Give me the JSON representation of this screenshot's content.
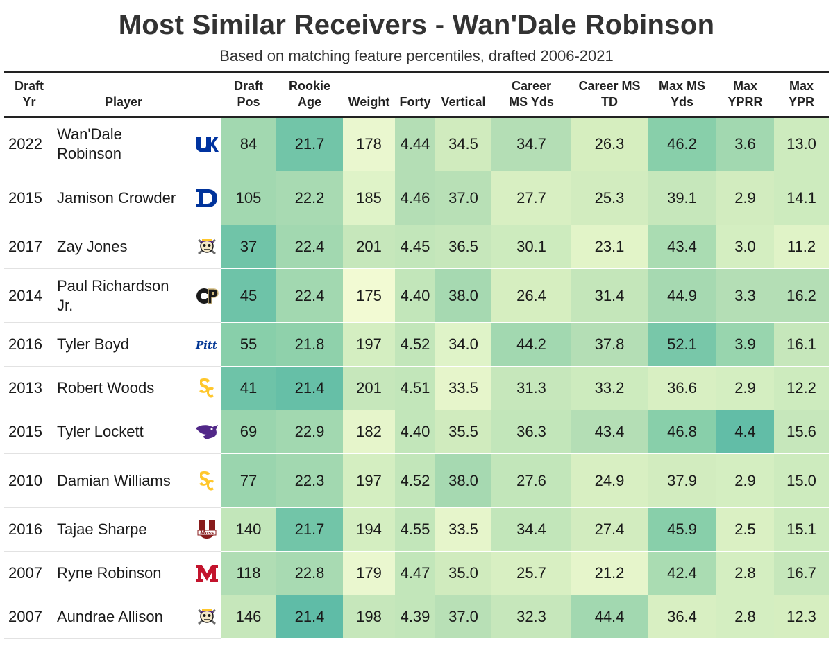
{
  "chart_data": {
    "type": "table",
    "title": "Most Similar Receivers - Wan'Dale Robinson",
    "subtitle": "Based on matching feature percentiles, drafted 2006-2021",
    "columns": [
      "Draft Yr",
      "Player",
      "",
      "Draft Pos",
      "Rookie Age",
      "Weight",
      "Forty",
      "Vertical",
      "Career MS Yds",
      "Career MS TD",
      "Max MS Yds",
      "Max YPRR",
      "Max YPR"
    ],
    "numeric_columns": [
      "draft_pos",
      "rookie_age",
      "weight",
      "forty",
      "vertical",
      "career_ms_yds",
      "career_ms_td",
      "max_ms_yds",
      "max_yprr",
      "max_ypr"
    ],
    "rows": [
      {
        "year": "2022",
        "player": "Wan'Dale Robinson",
        "school_logo": "kentucky-logo",
        "values": [
          "84",
          "21.7",
          "178",
          "4.44",
          "34.5",
          "34.7",
          "26.3",
          "46.2",
          "3.6",
          "13.0"
        ]
      },
      {
        "year": "2015",
        "player": "Jamison Crowder",
        "school_logo": "duke-logo",
        "values": [
          "105",
          "22.2",
          "185",
          "4.46",
          "37.0",
          "27.7",
          "25.3",
          "39.1",
          "2.9",
          "14.1"
        ]
      },
      {
        "year": "2017",
        "player": "Zay Jones",
        "school_logo": "east-carolina-logo",
        "values": [
          "37",
          "22.4",
          "201",
          "4.45",
          "36.5",
          "30.1",
          "23.1",
          "43.4",
          "3.0",
          "11.2"
        ]
      },
      {
        "year": "2014",
        "player": "Paul Richardson Jr.",
        "school_logo": "colorado-logo",
        "values": [
          "45",
          "22.4",
          "175",
          "4.40",
          "38.0",
          "26.4",
          "31.4",
          "44.9",
          "3.3",
          "16.2"
        ]
      },
      {
        "year": "2016",
        "player": "Tyler Boyd",
        "school_logo": "pitt-logo",
        "values": [
          "55",
          "21.8",
          "197",
          "4.52",
          "34.0",
          "44.2",
          "37.8",
          "52.1",
          "3.9",
          "16.1"
        ]
      },
      {
        "year": "2013",
        "player": "Robert Woods",
        "school_logo": "usc-logo",
        "values": [
          "41",
          "21.4",
          "201",
          "4.51",
          "33.5",
          "31.3",
          "33.2",
          "36.6",
          "2.9",
          "12.2"
        ]
      },
      {
        "year": "2015",
        "player": "Tyler Lockett",
        "school_logo": "kansas-state-logo",
        "values": [
          "69",
          "22.9",
          "182",
          "4.40",
          "35.5",
          "36.3",
          "43.4",
          "46.8",
          "4.4",
          "15.6"
        ]
      },
      {
        "year": "2010",
        "player": "Damian Williams",
        "school_logo": "usc-logo",
        "values": [
          "77",
          "22.3",
          "197",
          "4.52",
          "38.0",
          "27.6",
          "24.9",
          "37.9",
          "2.9",
          "15.0"
        ]
      },
      {
        "year": "2016",
        "player": "Tajae Sharpe",
        "school_logo": "umass-logo",
        "values": [
          "140",
          "21.7",
          "194",
          "4.55",
          "33.5",
          "34.4",
          "27.4",
          "45.9",
          "2.5",
          "15.1"
        ]
      },
      {
        "year": "2007",
        "player": "Ryne Robinson",
        "school_logo": "miami-ohio-logo",
        "values": [
          "118",
          "22.8",
          "179",
          "4.47",
          "35.0",
          "25.7",
          "21.2",
          "42.4",
          "2.8",
          "16.7"
        ]
      },
      {
        "year": "2007",
        "player": "Aundrae Allison",
        "school_logo": "east-carolina-logo",
        "values": [
          "146",
          "21.4",
          "198",
          "4.39",
          "37.0",
          "32.3",
          "44.4",
          "36.4",
          "2.8",
          "12.3"
        ]
      }
    ],
    "cell_colors": [
      [
        "#a2d8b0",
        "#72c5a8",
        "#eaf7cf",
        "#b4deb5",
        "#d0ebbe",
        "#b4deb5",
        "#d6eebf",
        "#88cfaa",
        "#a2d8b0",
        "#cdebbe"
      ],
      [
        "#a2d8b0",
        "#a8dab2",
        "#dff3c8",
        "#b4deb5",
        "#b8e0b6",
        "#d8efc2",
        "#d2ecbf",
        "#c6e7bb",
        "#d2ecbf",
        "#cdebbe"
      ],
      [
        "#70c4a8",
        "#a2d8b0",
        "#c6e7bb",
        "#c2e6ba",
        "#c6e7bb",
        "#cdebbe",
        "#e2f4c8",
        "#aadcb2",
        "#d4eec1",
        "#e0f3c7"
      ],
      [
        "#6ec3a8",
        "#a2d8b0",
        "#f2fad3",
        "#c2e6ba",
        "#a6d9b1",
        "#d6eec0",
        "#c4e6ba",
        "#a6d9b1",
        "#b4deb5",
        "#b4deb5"
      ],
      [
        "#88cfaa",
        "#8fd1ab",
        "#d4eec1",
        "#c2e6ba",
        "#dff3c8",
        "#a2d8b0",
        "#b4deb5",
        "#78c7a9",
        "#98d5ae",
        "#c6e7bb"
      ],
      [
        "#6ec3a8",
        "#66bfa7",
        "#c6e7bb",
        "#c2e6ba",
        "#e6f5cb",
        "#c6e7bb",
        "#cdebbe",
        "#d8efc2",
        "#d4eec1",
        "#cdebbe"
      ],
      [
        "#9ad5ae",
        "#a2d8b0",
        "#e6f5cb",
        "#c2e6ba",
        "#d0ebbe",
        "#c2e6ba",
        "#b4deb5",
        "#88cfaa",
        "#62bda7",
        "#c6e7bb"
      ],
      [
        "#9ad5ae",
        "#a2d8b0",
        "#d4eec1",
        "#c2e6ba",
        "#a6d9b1",
        "#c2e6ba",
        "#d8efc2",
        "#d2ecbf",
        "#d4eec1",
        "#cdebbe"
      ],
      [
        "#c2e6ba",
        "#72c5a8",
        "#d4eec1",
        "#c2e6ba",
        "#e6f5cb",
        "#c2e6ba",
        "#d2ecbf",
        "#88cfaa",
        "#daf0c3",
        "#cdebbe"
      ],
      [
        "#b0ddb4",
        "#a8dab2",
        "#eaf7cf",
        "#c2e6ba",
        "#d0ebbe",
        "#d8efc2",
        "#e6f5cb",
        "#aadcb2",
        "#d4eec1",
        "#c6e7bb"
      ],
      [
        "#c6e7bb",
        "#5fbca7",
        "#c6e7bb",
        "#c2e6ba",
        "#b8e0b6",
        "#c6e7bb",
        "#a2d8b0",
        "#d8efc2",
        "#d4eec1",
        "#d6eec0"
      ]
    ]
  },
  "logo_colors": {
    "kentucky": "#0033a0",
    "duke": "#00339b",
    "east_carolina": "#592a8a",
    "colorado": "#1a1a1a",
    "colorado_gold": "#cfb87c",
    "pitt": "#003594",
    "usc": "#ffc72c",
    "kansas_state": "#512888",
    "umass": "#881c1c",
    "miami_ohio": "#c3142d"
  }
}
